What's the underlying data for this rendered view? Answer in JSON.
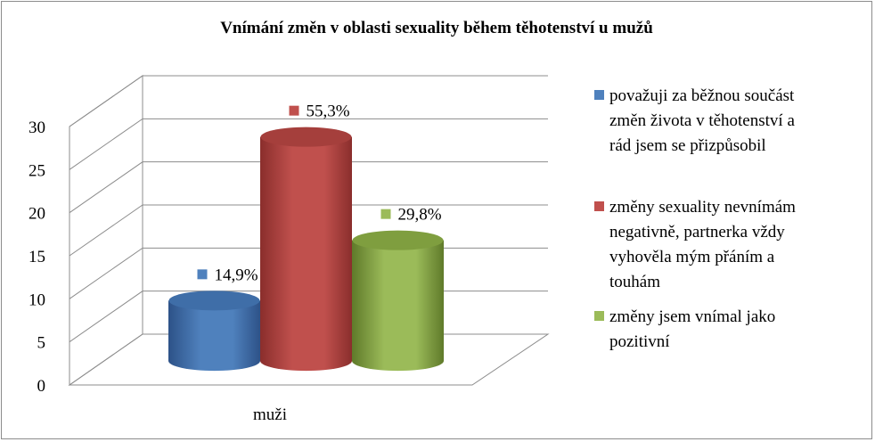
{
  "chart_data": {
    "type": "bar",
    "title": "Vnímání změn v oblasti sexuality během těhotenství u mužů",
    "categories": [
      "muži"
    ],
    "yticks": [
      "0",
      "5",
      "10",
      "15",
      "20",
      "25",
      "30"
    ],
    "ylim": [
      0,
      30
    ],
    "grid": true,
    "legend_position": "right",
    "series": [
      {
        "name": "považuji za běžnou součást změn života v těhotenství a rád jsem se přizpůsobil",
        "legend_lines": [
          "považuji za běžnou součást",
          "změn života v těhotenství a",
          "rád jsem se přizpůsobil"
        ],
        "value": 7,
        "label": "14,9%",
        "color": "#4f81bd",
        "top_color": "#3f6ea8",
        "dark_color": "#2d5288"
      },
      {
        "name": "změny sexuality nevnímám negativně, partnerka vždy vyhověla mým přáním a touhám",
        "legend_lines": [
          "změny sexuality nevnímám",
          "negativně, partnerka vždy",
          "vyhověla mým přáním a",
          "touhám"
        ],
        "value": 26,
        "label": "55,3%",
        "color": "#c0504d",
        "top_color": "#a53f3c",
        "dark_color": "#8a2e2c"
      },
      {
        "name": "změny jsem vnímal jako pozitivní",
        "legend_lines": [
          "změny jsem vnímal jako",
          "pozitivní"
        ],
        "value": 14,
        "label": "29,8%",
        "color": "#9bbb59",
        "top_color": "#7f9e3f",
        "dark_color": "#5f7a2a"
      }
    ]
  }
}
